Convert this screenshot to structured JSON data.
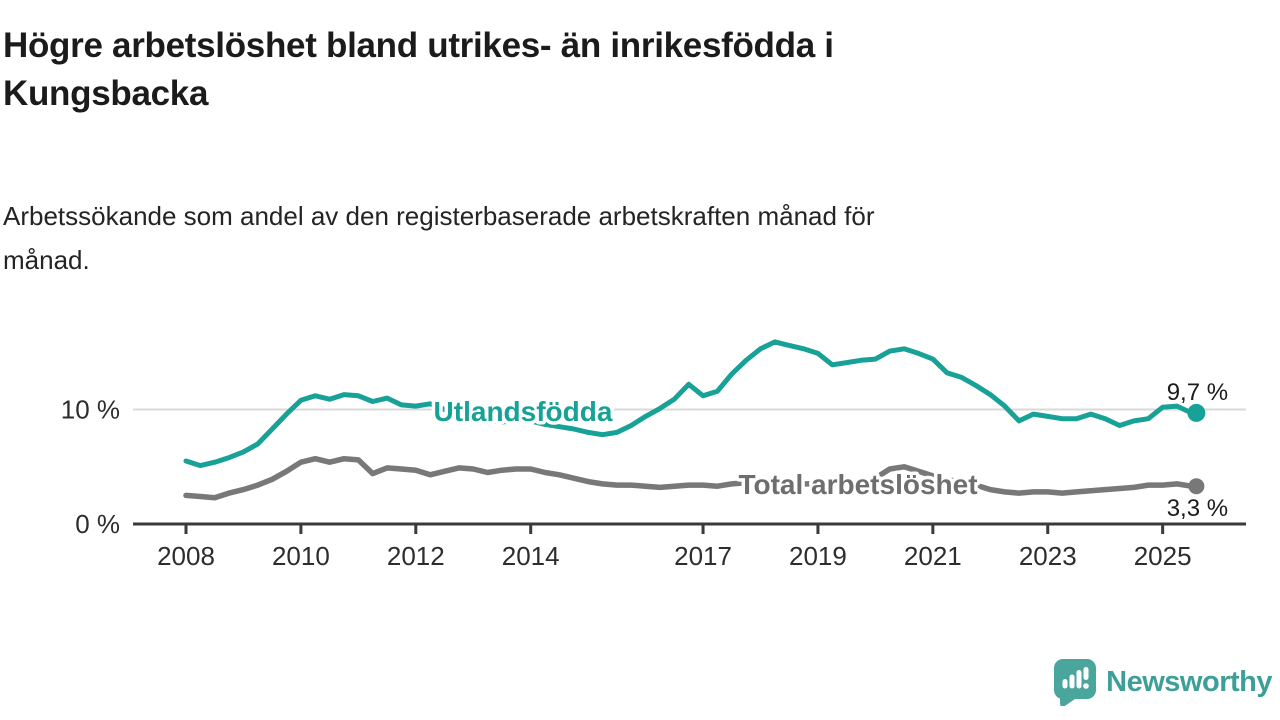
{
  "header": {
    "title_line1": "Högre arbetslöshet bland utrikes- än inrikesfödda i",
    "title_line2": "Kungsbacka",
    "subtitle_line1": "Arbetssökande som andel av den registerbaserade arbetskraften månad för",
    "subtitle_line2": "månad."
  },
  "colors": {
    "accent_teal": "#18a196",
    "line_gray": "#787878",
    "label_gray": "#6e6e6e",
    "grid": "#d9d9d9",
    "axis": "#3a3a3a",
    "tick_text": "#2d2d2d",
    "value_text": "#1b1b1b",
    "logo_bubble": "#4aa59d",
    "wordmark": "#3d9f97"
  },
  "chart_data": {
    "type": "line",
    "unit": "%",
    "x_start": 2008.0,
    "x_step": 0.25,
    "xlim": [
      2007.1,
      2026.4
    ],
    "ylim": [
      0,
      17
    ],
    "grid": "single horizontal gridline at 10 %",
    "legend_position": "inline labels on lines",
    "x_ticks": [
      2008,
      2010,
      2012,
      2014,
      2017,
      2019,
      2021,
      2023,
      2025
    ],
    "y_ticks": [
      {
        "value": 0,
        "label": "0 %"
      },
      {
        "value": 10,
        "label": "10 %"
      }
    ],
    "series": [
      {
        "name": "Utlandsfödda",
        "end_label": "9,7 %",
        "end_value": 9.7,
        "values": [
          5.5,
          5.1,
          5.4,
          5.8,
          6.3,
          7.0,
          8.3,
          9.6,
          10.8,
          11.2,
          10.9,
          11.3,
          11.2,
          10.7,
          11.0,
          10.4,
          10.3,
          10.5,
          10.0,
          9.8,
          9.6,
          9.1,
          8.9,
          9.1,
          9.0,
          8.7,
          8.5,
          8.3,
          8.0,
          7.8,
          8.0,
          8.6,
          9.4,
          10.1,
          10.9,
          12.2,
          11.2,
          11.6,
          13.1,
          14.3,
          15.3,
          15.9,
          15.6,
          15.3,
          14.9,
          13.9,
          14.1,
          14.3,
          14.4,
          15.1,
          15.3,
          14.9,
          14.4,
          13.2,
          12.8,
          12.1,
          11.3,
          10.3,
          9.0,
          9.6,
          9.4,
          9.2,
          9.2,
          9.6,
          9.2,
          8.6,
          9.0,
          9.2,
          10.2,
          10.3,
          9.7
        ]
      },
      {
        "name": "Total arbetslöshet",
        "end_label": "3,3 %",
        "end_value": 3.3,
        "values": [
          2.5,
          2.4,
          2.3,
          2.7,
          3.0,
          3.4,
          3.9,
          4.6,
          5.4,
          5.7,
          5.4,
          5.7,
          5.6,
          4.4,
          4.9,
          4.8,
          4.7,
          4.3,
          4.6,
          4.9,
          4.8,
          4.5,
          4.7,
          4.8,
          4.8,
          4.5,
          4.3,
          4.0,
          3.7,
          3.5,
          3.4,
          3.4,
          3.3,
          3.2,
          3.3,
          3.4,
          3.4,
          3.3,
          3.5,
          3.6,
          3.6,
          3.5,
          3.4,
          3.5,
          3.5,
          3.4,
          3.5,
          3.7,
          4.0,
          4.8,
          5.0,
          4.6,
          4.2,
          3.9,
          3.6,
          3.4,
          3.0,
          2.8,
          2.7,
          2.8,
          2.8,
          2.7,
          2.8,
          2.9,
          3.0,
          3.1,
          3.2,
          3.4,
          3.4,
          3.5,
          3.3
        ]
      }
    ]
  },
  "footer": {
    "brand": "Newsworthy"
  }
}
